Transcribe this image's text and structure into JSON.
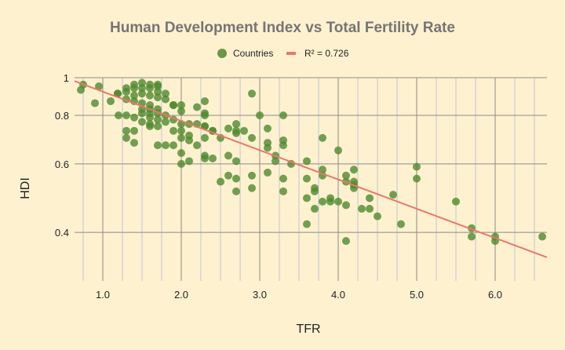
{
  "chart_data": {
    "type": "scatter",
    "title": "Human Development Index vs Total Fertility Rate",
    "xlabel": "TFR",
    "ylabel": "HDI",
    "xlim": [
      0.64,
      6.66
    ],
    "ylim": [
      0.3,
      1
    ],
    "yscale": "log",
    "x_ticks": [
      1,
      2,
      3,
      4,
      5,
      6
    ],
    "x_tick_labels": [
      "1.0",
      "2.0",
      "3.0",
      "4.0",
      "5.0",
      "6.0"
    ],
    "x_minor_step": 0.25,
    "y_ticks": [
      1,
      0.8,
      0.6,
      0.4
    ],
    "y_tick_labels": [
      "1",
      "0.8",
      "0.6",
      "0.4"
    ],
    "grid": true,
    "legend_position": "top",
    "legend": [
      {
        "label": "Countries",
        "marker": "circle",
        "color": "#4f8a2e"
      },
      {
        "label": "R² = 0.726",
        "marker": "line",
        "color": "#e8786a"
      }
    ],
    "series": [
      {
        "name": "Countries",
        "color": "#4f8a2e",
        "points": [
          [
            0.72,
            0.93
          ],
          [
            0.75,
            0.96
          ],
          [
            0.9,
            0.86
          ],
          [
            0.95,
            0.95
          ],
          [
            1.1,
            0.87
          ],
          [
            1.2,
            0.8
          ],
          [
            1.19,
            0.91
          ],
          [
            1.19,
            0.91
          ],
          [
            1.3,
            0.94
          ],
          [
            1.3,
            0.92
          ],
          [
            1.3,
            0.88
          ],
          [
            1.3,
            0.8
          ],
          [
            1.3,
            0.73
          ],
          [
            1.3,
            0.7
          ],
          [
            1.4,
            0.96
          ],
          [
            1.4,
            0.94
          ],
          [
            1.4,
            0.9
          ],
          [
            1.4,
            0.87
          ],
          [
            1.4,
            0.79
          ],
          [
            1.4,
            0.73
          ],
          [
            1.4,
            0.68
          ],
          [
            1.5,
            0.97
          ],
          [
            1.5,
            0.94
          ],
          [
            1.5,
            0.91
          ],
          [
            1.5,
            0.86
          ],
          [
            1.5,
            0.83
          ],
          [
            1.5,
            0.81
          ],
          [
            1.5,
            0.77
          ],
          [
            1.6,
            0.96
          ],
          [
            1.6,
            0.94
          ],
          [
            1.6,
            0.9
          ],
          [
            1.6,
            0.85
          ],
          [
            1.6,
            0.83
          ],
          [
            1.6,
            0.81
          ],
          [
            1.6,
            0.79
          ],
          [
            1.6,
            0.76
          ],
          [
            1.6,
            0.75
          ],
          [
            1.7,
            0.96
          ],
          [
            1.7,
            0.95
          ],
          [
            1.7,
            0.92
          ],
          [
            1.7,
            0.89
          ],
          [
            1.7,
            0.83
          ],
          [
            1.7,
            0.81
          ],
          [
            1.7,
            0.78
          ],
          [
            1.7,
            0.75
          ],
          [
            1.7,
            0.67
          ],
          [
            1.8,
            0.91
          ],
          [
            1.8,
            0.88
          ],
          [
            1.8,
            0.8
          ],
          [
            1.8,
            0.77
          ],
          [
            1.8,
            0.67
          ],
          [
            1.9,
            0.85
          ],
          [
            1.9,
            0.85
          ],
          [
            1.9,
            0.78
          ],
          [
            1.9,
            0.73
          ],
          [
            1.9,
            0.67
          ],
          [
            2.0,
            0.85
          ],
          [
            2.0,
            0.82
          ],
          [
            2.0,
            0.76
          ],
          [
            2.0,
            0.73
          ],
          [
            2.0,
            0.7
          ],
          [
            2.0,
            0.64
          ],
          [
            2.0,
            0.6
          ],
          [
            2.1,
            0.76
          ],
          [
            2.1,
            0.71
          ],
          [
            2.1,
            0.69
          ],
          [
            2.1,
            0.61
          ],
          [
            2.2,
            0.84
          ],
          [
            2.2,
            0.76
          ],
          [
            2.2,
            0.67
          ],
          [
            2.3,
            0.87
          ],
          [
            2.3,
            0.81
          ],
          [
            2.3,
            0.8
          ],
          [
            2.3,
            0.75
          ],
          [
            2.3,
            0.75
          ],
          [
            2.3,
            0.7
          ],
          [
            2.3,
            0.63
          ],
          [
            2.3,
            0.62
          ],
          [
            2.4,
            0.73
          ],
          [
            2.4,
            0.73
          ],
          [
            2.4,
            0.62
          ],
          [
            2.5,
            0.7
          ],
          [
            2.5,
            0.54
          ],
          [
            2.6,
            0.74
          ],
          [
            2.6,
            0.63
          ],
          [
            2.6,
            0.56
          ],
          [
            2.7,
            0.76
          ],
          [
            2.7,
            0.73
          ],
          [
            2.7,
            0.72
          ],
          [
            2.7,
            0.61
          ],
          [
            2.7,
            0.55
          ],
          [
            2.7,
            0.51
          ],
          [
            2.8,
            0.73
          ],
          [
            2.9,
            0.91
          ],
          [
            2.9,
            0.7
          ],
          [
            2.9,
            0.56
          ],
          [
            2.9,
            0.52
          ],
          [
            3.0,
            0.8
          ],
          [
            3.1,
            0.74
          ],
          [
            3.1,
            0.68
          ],
          [
            3.1,
            0.66
          ],
          [
            3.1,
            0.57
          ],
          [
            3.2,
            0.63
          ],
          [
            3.2,
            0.61
          ],
          [
            3.3,
            0.8
          ],
          [
            3.3,
            0.69
          ],
          [
            3.3,
            0.67
          ],
          [
            3.3,
            0.55
          ],
          [
            3.3,
            0.51
          ],
          [
            3.4,
            0.6
          ],
          [
            3.6,
            0.61
          ],
          [
            3.6,
            0.55
          ],
          [
            3.6,
            0.49
          ],
          [
            3.6,
            0.42
          ],
          [
            3.7,
            0.52
          ],
          [
            3.7,
            0.51
          ],
          [
            3.7,
            0.46
          ],
          [
            3.8,
            0.7
          ],
          [
            3.8,
            0.58
          ],
          [
            3.8,
            0.56
          ],
          [
            3.8,
            0.48
          ],
          [
            3.9,
            0.49
          ],
          [
            3.9,
            0.48
          ],
          [
            4.0,
            0.65
          ],
          [
            4.0,
            0.48
          ],
          [
            4.1,
            0.56
          ],
          [
            4.1,
            0.54
          ],
          [
            4.1,
            0.47
          ],
          [
            4.1,
            0.38
          ],
          [
            4.2,
            0.58
          ],
          [
            4.2,
            0.54
          ],
          [
            4.2,
            0.53
          ],
          [
            4.2,
            0.52
          ],
          [
            4.3,
            0.46
          ],
          [
            4.4,
            0.49
          ],
          [
            4.4,
            0.46
          ],
          [
            4.5,
            0.44
          ],
          [
            4.7,
            0.5
          ],
          [
            4.8,
            0.42
          ],
          [
            5.0,
            0.59
          ],
          [
            5.0,
            0.55
          ],
          [
            5.5,
            0.48
          ],
          [
            5.7,
            0.41
          ],
          [
            5.7,
            0.39
          ],
          [
            6.0,
            0.39
          ],
          [
            6.0,
            0.38
          ],
          [
            6.6,
            0.39
          ]
        ]
      }
    ],
    "trendline": {
      "label": "R² = 0.726",
      "type": "exponential",
      "r_squared": 0.726,
      "color": "#e8786a",
      "x": [
        0.64,
        6.66
      ],
      "y": [
        0.98,
        0.345
      ]
    }
  }
}
